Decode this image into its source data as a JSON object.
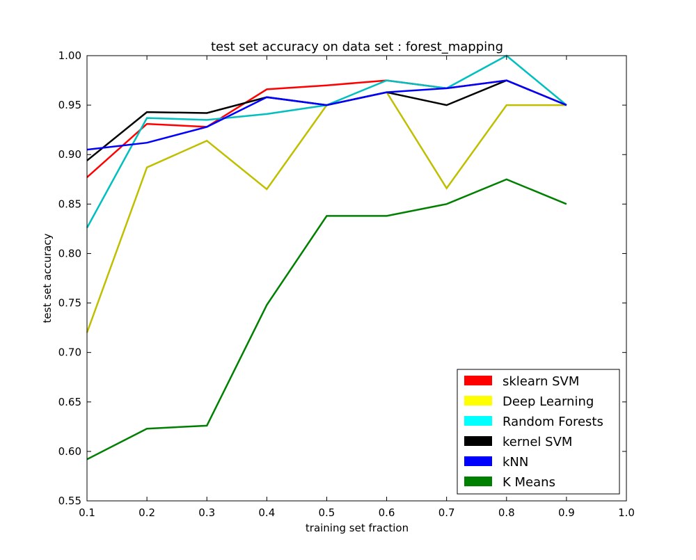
{
  "chart_data": {
    "type": "line",
    "title": "test set accuracy on data set : forest_mapping",
    "xlabel": "training set fraction",
    "ylabel": "test set accuracy",
    "xlim": [
      0.1,
      1.0
    ],
    "ylim": [
      0.55,
      1.0
    ],
    "xticks": [
      "0.1",
      "0.2",
      "0.3",
      "0.4",
      "0.5",
      "0.6",
      "0.7",
      "0.8",
      "0.9",
      "1.0"
    ],
    "yticks": [
      "0.55",
      "0.60",
      "0.65",
      "0.70",
      "0.75",
      "0.80",
      "0.85",
      "0.90",
      "0.95",
      "1.00"
    ],
    "grid": false,
    "legend_position": "bottom-right",
    "x": [
      0.1,
      0.2,
      0.3,
      0.4,
      0.5,
      0.6,
      0.7,
      0.8,
      0.9
    ],
    "series": [
      {
        "name": "sklearn SVM",
        "color": "#ff0000",
        "legend_color": "#ff0000",
        "values": [
          0.877,
          0.931,
          0.928,
          0.966,
          0.97,
          0.975,
          0.967,
          0.975,
          0.95
        ]
      },
      {
        "name": "Deep Learning",
        "color": "#bfbf00",
        "legend_color": "#ffff00",
        "values": [
          0.72,
          0.887,
          0.914,
          0.865,
          0.95,
          0.963,
          0.866,
          0.95,
          0.95
        ]
      },
      {
        "name": "Random Forests",
        "color": "#00bfbf",
        "legend_color": "#00ffff",
        "values": [
          0.826,
          0.937,
          0.935,
          0.941,
          0.95,
          0.975,
          0.967,
          1.0,
          0.95
        ]
      },
      {
        "name": "kernel SVM",
        "color": "#000000",
        "legend_color": "#000000",
        "values": [
          0.894,
          0.943,
          0.942,
          0.958,
          0.95,
          0.963,
          0.95,
          0.975,
          0.95
        ]
      },
      {
        "name": "kNN",
        "color": "#0000ff",
        "legend_color": "#0000ff",
        "values": [
          0.905,
          0.912,
          0.928,
          0.958,
          0.95,
          0.963,
          0.967,
          0.975,
          0.95
        ]
      },
      {
        "name": "K Means",
        "color": "#008000",
        "legend_color": "#008000",
        "values": [
          0.592,
          0.623,
          0.626,
          0.748,
          0.838,
          0.838,
          0.85,
          0.875,
          0.85
        ]
      }
    ]
  }
}
